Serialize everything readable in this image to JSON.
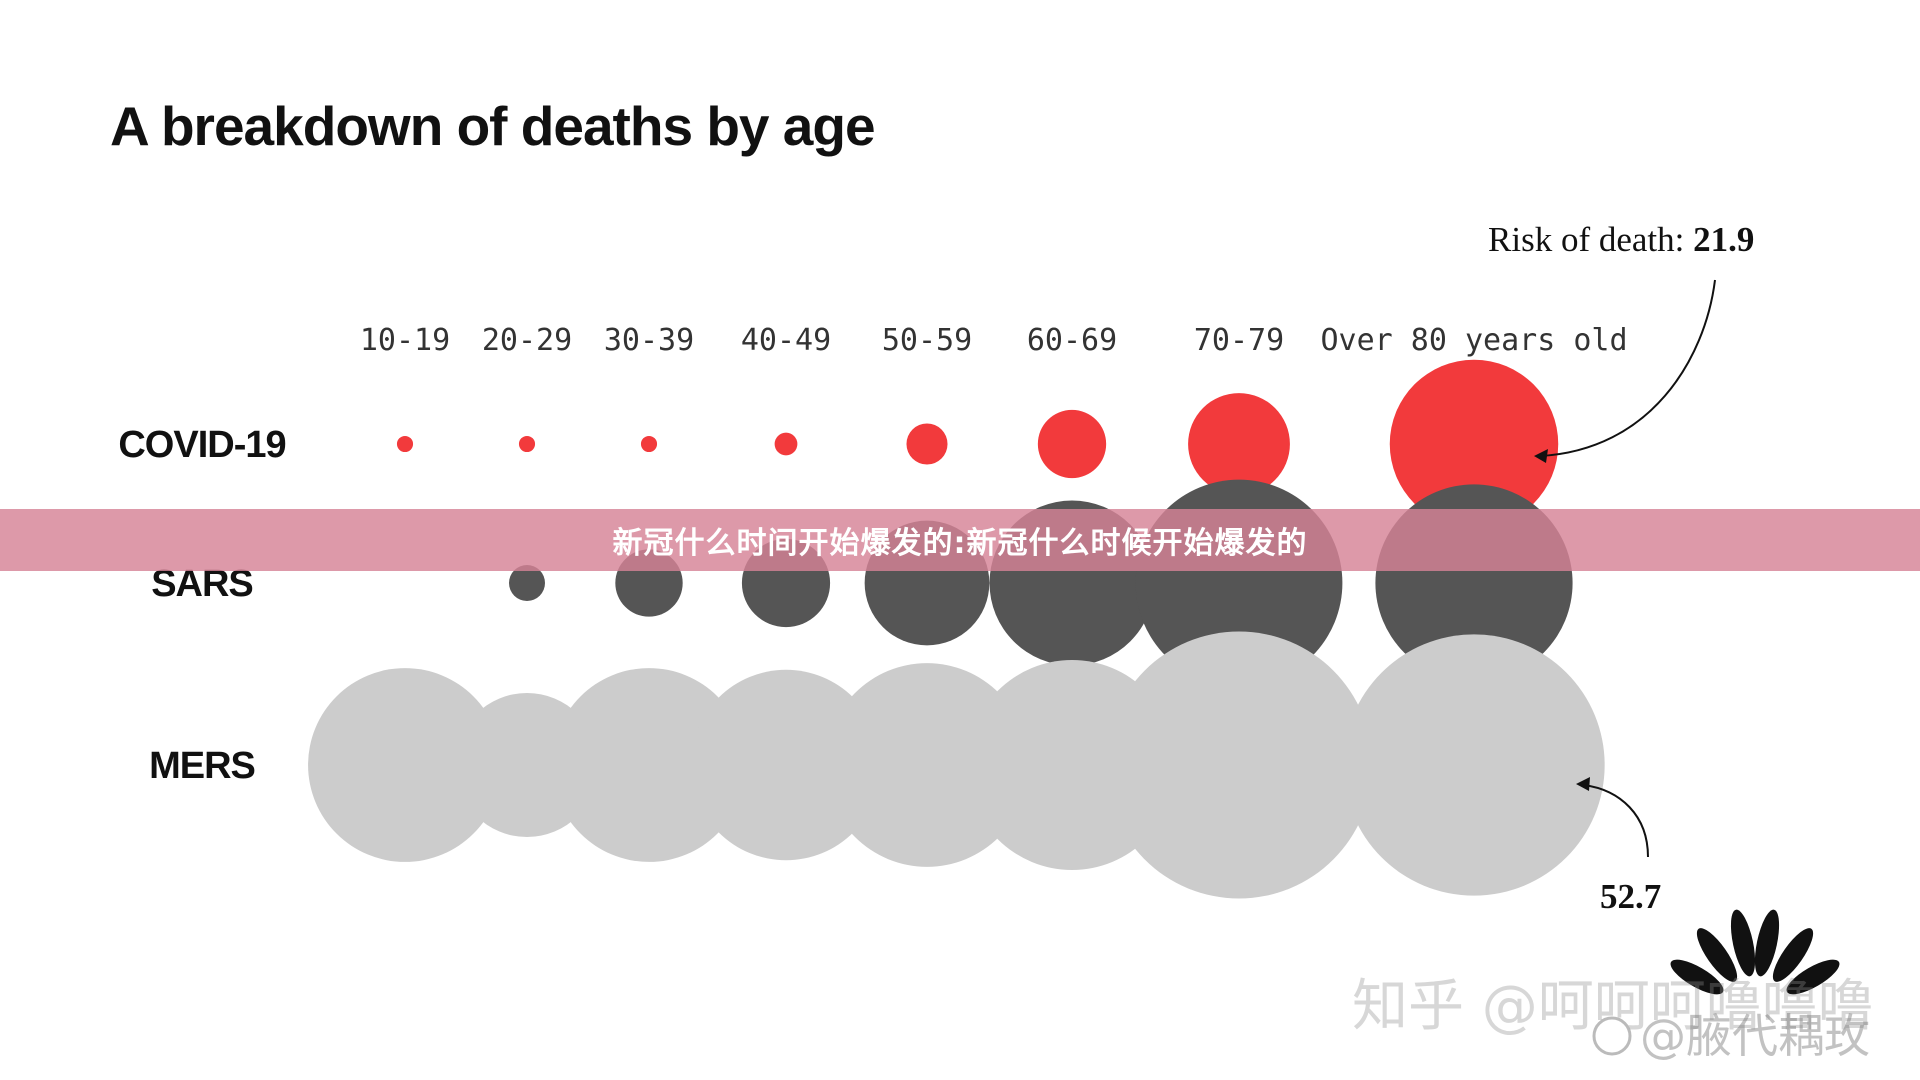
{
  "chart_data": {
    "type": "bubble",
    "title": "A breakdown of deaths by age",
    "categories": [
      "10-19",
      "20-29",
      "30-39",
      "40-49",
      "50-59",
      "60-69",
      "70-79",
      "Over 80 years old"
    ],
    "series": [
      {
        "name": "COVID-19",
        "color": "#f23a3c",
        "values": [
          0.2,
          0.2,
          0.2,
          0.4,
          1.3,
          3.6,
          8.0,
          21.9
        ]
      },
      {
        "name": "SARS",
        "color": "#555555",
        "values": [
          null,
          1.0,
          3.5,
          6.0,
          12.0,
          21.0,
          33.0,
          30.0
        ]
      },
      {
        "name": "MERS",
        "color": "#cccccc",
        "values": [
          29.0,
          16.0,
          29.0,
          28.0,
          32.0,
          34.0,
          55.0,
          52.7
        ]
      }
    ],
    "annotations": {
      "covid_label_prefix": "Risk of death: ",
      "covid_value": "21.9",
      "mers_value": "52.7"
    }
  },
  "banner": {
    "text": "新冠什么时间开始爆发的:新冠什么时候开始爆发的"
  },
  "watermarks": {
    "zhihu": "知乎 @呵呵呵噜噜噜",
    "weibo": "@腋代耦玫"
  }
}
